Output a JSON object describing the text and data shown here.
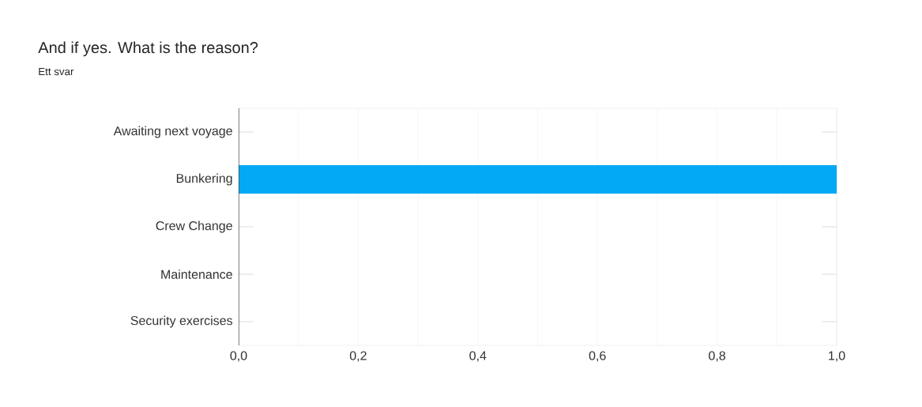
{
  "chart_data": {
    "type": "bar",
    "title": "And if yes. What is the reason?",
    "subtitle": "Ett svar",
    "orientation": "horizontal",
    "categories": [
      "Awaiting next voyage",
      "Bunkering",
      "Crew Change",
      "Maintenance",
      "Security exercises"
    ],
    "values": [
      0,
      1,
      0,
      0,
      0
    ],
    "color": "#03a9f4",
    "xlim": [
      0,
      1
    ],
    "xticks": [
      {
        "value": 0,
        "label": "0,0"
      },
      {
        "value": 0.1,
        "label": null
      },
      {
        "value": 0.2,
        "label": "0,2"
      },
      {
        "value": 0.3,
        "label": null
      },
      {
        "value": 0.4,
        "label": "0,4"
      },
      {
        "value": 0.5,
        "label": null
      },
      {
        "value": 0.6,
        "label": "0,6"
      },
      {
        "value": 0.7,
        "label": null
      },
      {
        "value": 0.8,
        "label": "0,8"
      },
      {
        "value": 0.9,
        "label": null
      },
      {
        "value": 1,
        "label": "1,0"
      }
    ],
    "grid": "x"
  }
}
